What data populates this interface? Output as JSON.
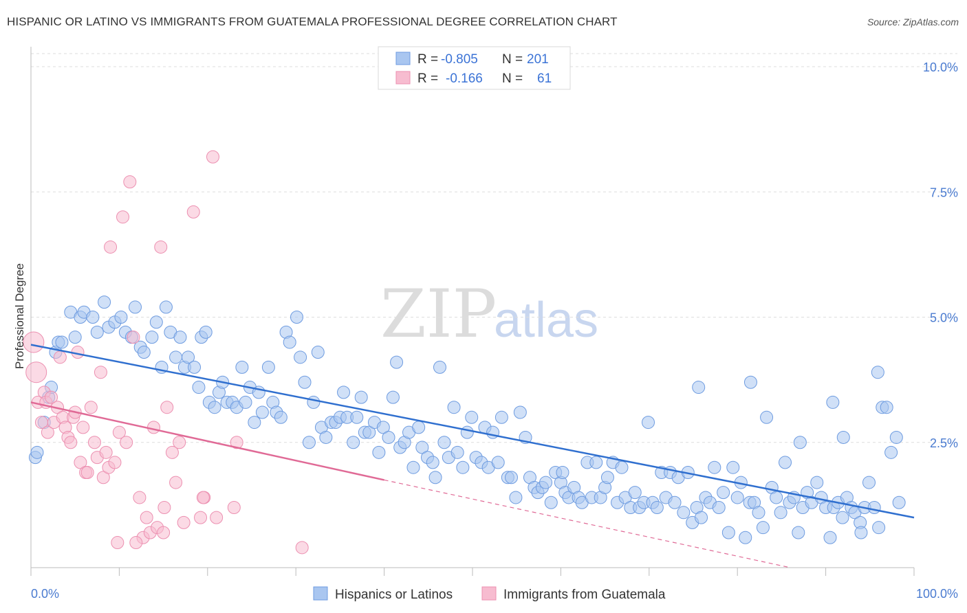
{
  "title": "HISPANIC OR LATINO VS IMMIGRANTS FROM GUATEMALA PROFESSIONAL DEGREE CORRELATION CHART",
  "source": "Source: ZipAtlas.com",
  "watermark": {
    "zip": "ZIP",
    "atlas": "atlas"
  },
  "colors": {
    "blue_fill": "#a9c6f0",
    "blue_stroke": "#6d9be0",
    "blue_line": "#2f6fcf",
    "pink_fill": "#f7bcd0",
    "pink_stroke": "#ec8fb0",
    "pink_line": "#e06a96",
    "tick_text": "#4a7bd0",
    "grid": "#dddddd"
  },
  "legend": {
    "rows": [
      {
        "r_label": "R =",
        "r_value": "-0.805",
        "n_label": "N =",
        "n_value": "201"
      },
      {
        "r_label": "R =",
        "r_value": "-0.166",
        "n_label": "N =",
        "n_value": "61"
      }
    ]
  },
  "chart_data": {
    "type": "scatter",
    "title": "HISPANIC OR LATINO VS IMMIGRANTS FROM GUATEMALA PROFESSIONAL DEGREE CORRELATION CHART",
    "xlabel": "",
    "ylabel": "Professional Degree",
    "xlim": [
      0,
      100
    ],
    "ylim": [
      0,
      10.5
    ],
    "x_tick_labels": [
      "0.0%",
      "100.0%"
    ],
    "y_ticks": [
      2.5,
      5.0,
      7.5,
      10.0
    ],
    "y_tick_labels": [
      "2.5%",
      "5.0%",
      "7.5%",
      "10.0%"
    ],
    "grid": true,
    "legend_position": "top-center",
    "series": [
      {
        "name": "Hispanics or Latinos",
        "r": -0.805,
        "n": 201,
        "trend": {
          "x": [
            0,
            100
          ],
          "y": [
            4.45,
            1.0
          ]
        },
        "points": [
          [
            0.5,
            2.2
          ],
          [
            0.7,
            2.3
          ],
          [
            1.5,
            2.9
          ],
          [
            2.0,
            3.4
          ],
          [
            2.3,
            3.6
          ],
          [
            2.8,
            4.3
          ],
          [
            3.1,
            4.5
          ],
          [
            3.5,
            4.5
          ],
          [
            4.5,
            5.1
          ],
          [
            5.0,
            4.6
          ],
          [
            5.6,
            5.0
          ],
          [
            6.0,
            5.1
          ],
          [
            7.0,
            5.0
          ],
          [
            7.5,
            4.7
          ],
          [
            8.3,
            5.3
          ],
          [
            8.8,
            4.8
          ],
          [
            9.5,
            4.9
          ],
          [
            10.2,
            5.0
          ],
          [
            10.7,
            4.7
          ],
          [
            11.4,
            4.6
          ],
          [
            11.8,
            5.2
          ],
          [
            12.4,
            4.4
          ],
          [
            12.8,
            4.3
          ],
          [
            13.7,
            4.6
          ],
          [
            14.2,
            4.9
          ],
          [
            14.8,
            4.0
          ],
          [
            15.3,
            5.2
          ],
          [
            15.8,
            4.7
          ],
          [
            16.4,
            4.2
          ],
          [
            16.9,
            4.6
          ],
          [
            17.4,
            4.0
          ],
          [
            17.8,
            4.2
          ],
          [
            18.5,
            4.0
          ],
          [
            19.0,
            3.6
          ],
          [
            19.3,
            4.6
          ],
          [
            19.8,
            4.7
          ],
          [
            20.2,
            3.3
          ],
          [
            20.8,
            3.2
          ],
          [
            21.3,
            3.5
          ],
          [
            21.7,
            3.7
          ],
          [
            22.2,
            3.3
          ],
          [
            22.8,
            3.3
          ],
          [
            23.3,
            3.2
          ],
          [
            23.9,
            4.0
          ],
          [
            24.3,
            3.3
          ],
          [
            24.8,
            3.6
          ],
          [
            25.3,
            2.9
          ],
          [
            25.8,
            3.5
          ],
          [
            26.2,
            3.1
          ],
          [
            26.9,
            4.0
          ],
          [
            27.4,
            3.3
          ],
          [
            27.8,
            3.1
          ],
          [
            28.3,
            3.0
          ],
          [
            28.9,
            4.7
          ],
          [
            29.3,
            4.5
          ],
          [
            30.1,
            5.0
          ],
          [
            30.5,
            4.2
          ],
          [
            31.0,
            3.7
          ],
          [
            31.5,
            2.5
          ],
          [
            32.0,
            3.3
          ],
          [
            32.5,
            4.3
          ],
          [
            32.9,
            2.8
          ],
          [
            33.4,
            2.6
          ],
          [
            34.0,
            2.9
          ],
          [
            34.5,
            2.9
          ],
          [
            35.0,
            3.0
          ],
          [
            35.4,
            3.5
          ],
          [
            35.8,
            3.0
          ],
          [
            36.5,
            2.5
          ],
          [
            36.9,
            3.0
          ],
          [
            37.4,
            3.4
          ],
          [
            37.8,
            2.7
          ],
          [
            38.3,
            2.7
          ],
          [
            38.9,
            2.9
          ],
          [
            39.4,
            2.3
          ],
          [
            39.9,
            2.8
          ],
          [
            40.5,
            2.6
          ],
          [
            41.0,
            3.4
          ],
          [
            41.4,
            4.1
          ],
          [
            41.8,
            2.4
          ],
          [
            42.3,
            2.5
          ],
          [
            42.8,
            2.7
          ],
          [
            43.3,
            2.0
          ],
          [
            43.9,
            2.8
          ],
          [
            44.3,
            2.4
          ],
          [
            44.9,
            2.2
          ],
          [
            45.5,
            2.1
          ],
          [
            45.8,
            1.8
          ],
          [
            46.3,
            4.0
          ],
          [
            46.8,
            2.5
          ],
          [
            47.3,
            2.2
          ],
          [
            47.9,
            3.2
          ],
          [
            48.3,
            2.3
          ],
          [
            48.9,
            2.0
          ],
          [
            49.4,
            2.7
          ],
          [
            49.9,
            3.0
          ],
          [
            50.4,
            2.2
          ],
          [
            51.0,
            2.1
          ],
          [
            51.4,
            2.8
          ],
          [
            51.8,
            2.0
          ],
          [
            52.3,
            2.7
          ],
          [
            52.9,
            2.1
          ],
          [
            53.3,
            3.0
          ],
          [
            54.0,
            1.8
          ],
          [
            54.4,
            1.8
          ],
          [
            54.9,
            1.4
          ],
          [
            55.4,
            3.1
          ],
          [
            56.0,
            2.6
          ],
          [
            56.5,
            1.8
          ],
          [
            57.0,
            1.6
          ],
          [
            57.4,
            1.5
          ],
          [
            57.9,
            1.6
          ],
          [
            58.3,
            1.7
          ],
          [
            58.9,
            1.3
          ],
          [
            59.4,
            1.9
          ],
          [
            60.0,
            1.7
          ],
          [
            60.5,
            1.5
          ],
          [
            60.9,
            1.4
          ],
          [
            61.5,
            1.6
          ],
          [
            62.0,
            1.4
          ],
          [
            62.4,
            1.3
          ],
          [
            63.0,
            2.1
          ],
          [
            63.5,
            1.4
          ],
          [
            64.0,
            2.1
          ],
          [
            64.5,
            1.4
          ],
          [
            65.0,
            1.6
          ],
          [
            65.3,
            1.8
          ],
          [
            65.9,
            2.1
          ],
          [
            66.4,
            1.3
          ],
          [
            66.9,
            2.0
          ],
          [
            67.3,
            1.4
          ],
          [
            67.9,
            1.2
          ],
          [
            68.4,
            1.5
          ],
          [
            68.9,
            1.2
          ],
          [
            69.4,
            1.3
          ],
          [
            69.9,
            2.9
          ],
          [
            70.4,
            1.3
          ],
          [
            70.9,
            1.2
          ],
          [
            71.4,
            1.9
          ],
          [
            71.9,
            1.4
          ],
          [
            72.4,
            1.9
          ],
          [
            72.9,
            1.3
          ],
          [
            73.3,
            1.8
          ],
          [
            73.9,
            1.1
          ],
          [
            74.4,
            1.9
          ],
          [
            74.9,
            0.9
          ],
          [
            75.4,
            1.2
          ],
          [
            75.9,
            1.0
          ],
          [
            76.4,
            1.4
          ],
          [
            76.9,
            1.3
          ],
          [
            77.4,
            2.0
          ],
          [
            77.9,
            1.2
          ],
          [
            78.4,
            1.5
          ],
          [
            79.0,
            0.7
          ],
          [
            79.5,
            2.0
          ],
          [
            80.0,
            1.4
          ],
          [
            80.4,
            1.7
          ],
          [
            80.9,
            0.6
          ],
          [
            81.4,
            1.3
          ],
          [
            81.9,
            1.3
          ],
          [
            82.4,
            1.1
          ],
          [
            82.9,
            0.8
          ],
          [
            83.3,
            3.0
          ],
          [
            83.9,
            1.6
          ],
          [
            84.4,
            1.4
          ],
          [
            84.9,
            1.1
          ],
          [
            85.4,
            2.1
          ],
          [
            85.9,
            1.3
          ],
          [
            86.4,
            1.4
          ],
          [
            86.9,
            0.7
          ],
          [
            87.4,
            1.2
          ],
          [
            87.9,
            1.5
          ],
          [
            88.4,
            1.3
          ],
          [
            89.0,
            1.7
          ],
          [
            89.5,
            1.4
          ],
          [
            90.0,
            1.2
          ],
          [
            90.5,
            0.6
          ],
          [
            90.9,
            1.2
          ],
          [
            91.4,
            1.3
          ],
          [
            91.9,
            1.0
          ],
          [
            92.4,
            1.4
          ],
          [
            92.9,
            1.2
          ],
          [
            93.3,
            1.1
          ],
          [
            93.9,
            0.9
          ],
          [
            94.4,
            1.2
          ],
          [
            94.9,
            1.7
          ],
          [
            95.5,
            1.2
          ],
          [
            95.9,
            3.9
          ],
          [
            96.4,
            3.2
          ],
          [
            96.9,
            3.2
          ],
          [
            97.4,
            2.3
          ],
          [
            98.0,
            2.6
          ],
          [
            98.3,
            1.3
          ],
          [
            75.6,
            3.6
          ],
          [
            81.5,
            3.7
          ],
          [
            87.1,
            2.5
          ],
          [
            90.8,
            3.3
          ],
          [
            92.0,
            2.6
          ],
          [
            94.0,
            0.7
          ],
          [
            96.0,
            0.8
          ],
          [
            60.2,
            1.9
          ]
        ]
      },
      {
        "name": "Immigrants from Guatemala",
        "r": -0.166,
        "n": 61,
        "trend": {
          "x": [
            0,
            40
          ],
          "y": [
            3.3,
            1.75
          ]
        },
        "trend_dashed": {
          "x": [
            40,
            86
          ],
          "y": [
            1.75,
            0.0
          ]
        },
        "points": [
          [
            0.3,
            4.5
          ],
          [
            0.6,
            3.9
          ],
          [
            0.8,
            3.3
          ],
          [
            1.2,
            2.9
          ],
          [
            1.5,
            3.5
          ],
          [
            1.7,
            3.3
          ],
          [
            1.9,
            2.7
          ],
          [
            2.3,
            3.4
          ],
          [
            2.6,
            2.9
          ],
          [
            3.0,
            3.2
          ],
          [
            3.3,
            4.2
          ],
          [
            3.6,
            3.0
          ],
          [
            3.9,
            2.8
          ],
          [
            4.2,
            2.6
          ],
          [
            4.5,
            2.5
          ],
          [
            4.8,
            3.0
          ],
          [
            5.0,
            3.1
          ],
          [
            5.3,
            4.3
          ],
          [
            5.6,
            2.1
          ],
          [
            5.9,
            2.8
          ],
          [
            6.2,
            1.9
          ],
          [
            6.4,
            1.9
          ],
          [
            6.8,
            3.2
          ],
          [
            7.2,
            2.5
          ],
          [
            7.5,
            2.2
          ],
          [
            7.9,
            3.9
          ],
          [
            8.2,
            1.8
          ],
          [
            8.5,
            2.3
          ],
          [
            8.8,
            2.0
          ],
          [
            9.0,
            6.4
          ],
          [
            9.5,
            2.1
          ],
          [
            10.0,
            2.7
          ],
          [
            10.4,
            7.0
          ],
          [
            10.8,
            2.5
          ],
          [
            11.2,
            7.7
          ],
          [
            11.6,
            4.6
          ],
          [
            12.3,
            1.4
          ],
          [
            12.7,
            0.6
          ],
          [
            13.1,
            1.0
          ],
          [
            13.5,
            0.7
          ],
          [
            13.9,
            2.8
          ],
          [
            14.3,
            0.8
          ],
          [
            14.7,
            6.4
          ],
          [
            15.1,
            1.2
          ],
          [
            15.4,
            3.2
          ],
          [
            16.0,
            2.3
          ],
          [
            16.4,
            1.7
          ],
          [
            16.8,
            2.5
          ],
          [
            17.3,
            0.9
          ],
          [
            18.4,
            7.1
          ],
          [
            19.2,
            1.0
          ],
          [
            19.6,
            1.4
          ],
          [
            20.6,
            8.2
          ],
          [
            21.0,
            1.0
          ],
          [
            23.0,
            1.2
          ],
          [
            23.3,
            2.5
          ],
          [
            9.8,
            0.5
          ],
          [
            11.9,
            0.5
          ],
          [
            30.7,
            0.4
          ],
          [
            15.0,
            0.7
          ],
          [
            19.5,
            1.4
          ]
        ]
      }
    ]
  },
  "bottom_legend": {
    "items": [
      {
        "label": "Hispanics or Latinos"
      },
      {
        "label": "Immigrants from Guatemala"
      }
    ]
  }
}
